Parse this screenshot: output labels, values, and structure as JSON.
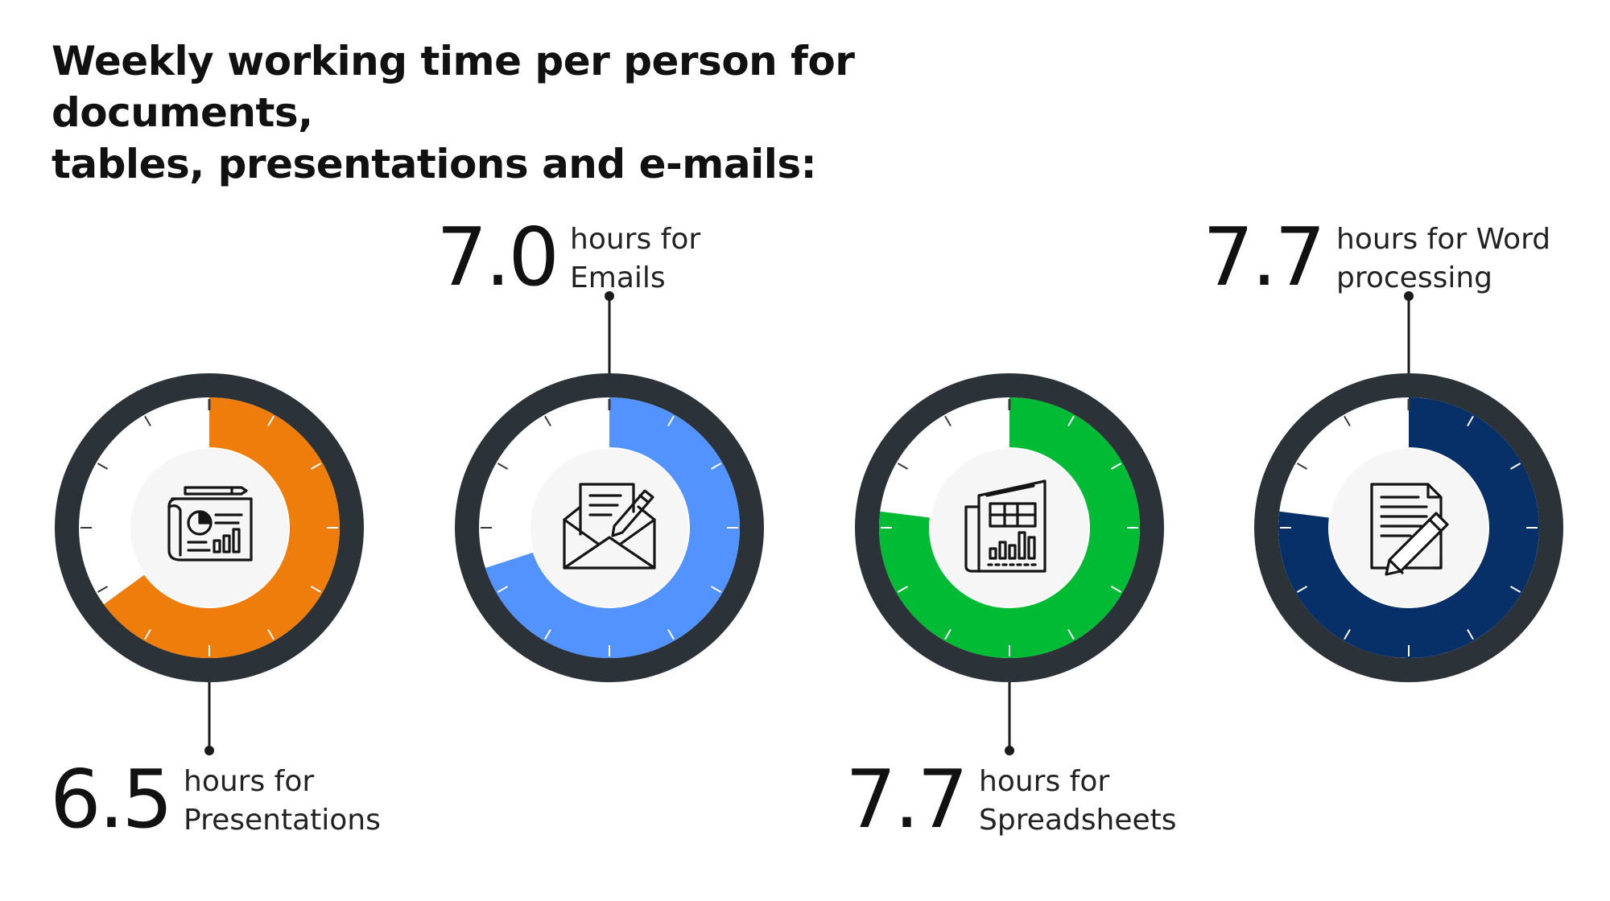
{
  "chart_data": {
    "type": "pie",
    "title": {
      "line1": "Weekly working time per person for documents,",
      "line2": "tables, presentations and e-mails:"
    },
    "scale_max_hours": 10,
    "items": [
      {
        "value": 6.5,
        "value_label": "6.5",
        "caption_line1": "hours for",
        "caption_line2": "Presentations",
        "color": "#EE7D0B",
        "icon": "presentation-report-icon"
      },
      {
        "value": 7.0,
        "value_label": "7.0",
        "caption_line1": "hours for",
        "caption_line2": "Emails",
        "color": "#5393FF",
        "icon": "envelope-letter-icon"
      },
      {
        "value": 7.7,
        "value_label": "7.7",
        "caption_line1": "hours for",
        "caption_line2": "Spreadsheets",
        "color": "#00BB33",
        "icon": "spreadsheet-document-icon"
      },
      {
        "value": 7.7,
        "value_label": "7.7",
        "caption_line1": "hours for Word",
        "caption_line2": "processing",
        "color": "#073068",
        "icon": "document-pencil-icon"
      }
    ],
    "ring_color": "#2B3238"
  }
}
